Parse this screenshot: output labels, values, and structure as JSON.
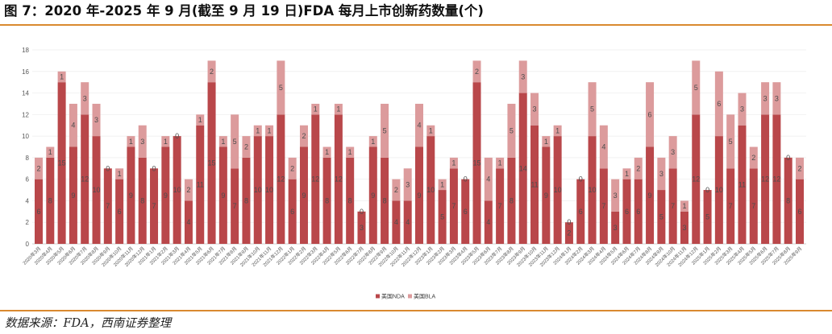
{
  "source": "数据来源：FDA，西南证券整理",
  "colors": {
    "rule": "#d9892f",
    "grid": "#ececec",
    "axis": "#bfbfbf",
    "label": "#4d4d4d"
  },
  "chart_data": {
    "type": "bar",
    "stacked": true,
    "title": "图 7：2020 年-2025 年 9 月(截至 9 月 19 日)FDA 每月上市创新药数量(个)",
    "ylim": [
      0,
      18
    ],
    "yticks": [
      0,
      2,
      4,
      6,
      8,
      10,
      12,
      14,
      16,
      18
    ],
    "grid": true,
    "legend": "bottom",
    "categories": [
      "2020年3月",
      "2020年4月",
      "2020年5月",
      "2020年6月",
      "2020年7月",
      "2020年8月",
      "2020年9月",
      "2020年10月",
      "2020年11月",
      "2020年12月",
      "2021年1月",
      "2021年2月",
      "2021年3月",
      "2021年4月",
      "2021年5月",
      "2021年6月",
      "2021年7月",
      "2021年8月",
      "2021年9月",
      "2021年10月",
      "2021年11月",
      "2021年12月",
      "2022年1月",
      "2022年2月",
      "2022年3月",
      "2022年4月",
      "2022年5月",
      "2022年6月",
      "2022年7月",
      "2022年8月",
      "2022年9月",
      "2022年10月",
      "2022年11月",
      "2022年12月",
      "2023年1月",
      "2023年2月",
      "2023年3月",
      "2023年4月",
      "2023年5月",
      "2023年6月",
      "2023年7月",
      "2023年8月",
      "2023年9月",
      "2023年10月",
      "2023年11月",
      "2023年12月",
      "2024年1月",
      "2024年2月",
      "2024年3月",
      "2024年4月",
      "2024年5月",
      "2024年6月",
      "2024年7月",
      "2024年8月",
      "2024年9月",
      "2024年10月",
      "2024年11月",
      "2024年12月",
      "2025年1月",
      "2025年2月",
      "2025年3月",
      "2025年4月",
      "2025年5月",
      "2025年6月",
      "2025年7月",
      "2025年8月",
      "2025年9月"
    ],
    "series": [
      {
        "name": "美国NDA",
        "color": "#b9474a",
        "values": [
          6,
          8,
          15,
          9,
          12,
          10,
          7,
          6,
          9,
          8,
          7,
          9,
          10,
          4,
          11,
          15,
          9,
          7,
          8,
          10,
          10,
          12,
          6,
          9,
          12,
          8,
          12,
          8,
          3,
          9,
          8,
          4,
          4,
          9,
          10,
          5,
          7,
          6,
          15,
          4,
          7,
          8,
          14,
          11,
          9,
          10,
          2,
          6,
          10,
          7,
          3,
          6,
          6,
          9,
          5,
          7,
          3,
          12,
          5,
          10,
          7,
          11,
          7,
          12,
          12,
          8,
          6
        ]
      },
      {
        "name": "美国BLA",
        "color": "#dc9b9c",
        "values": [
          2,
          1,
          1,
          4,
          3,
          3,
          0,
          1,
          1,
          3,
          0,
          1,
          0,
          2,
          1,
          2,
          1,
          5,
          2,
          1,
          1,
          5,
          2,
          2,
          1,
          1,
          1,
          1,
          0,
          1,
          5,
          2,
          3,
          4,
          1,
          1,
          1,
          0,
          2,
          4,
          1,
          5,
          3,
          3,
          1,
          1,
          0,
          0,
          5,
          4,
          3,
          1,
          2,
          6,
          3,
          3,
          1,
          5,
          0,
          6,
          5,
          3,
          2,
          3,
          3,
          0,
          2
        ]
      }
    ]
  }
}
